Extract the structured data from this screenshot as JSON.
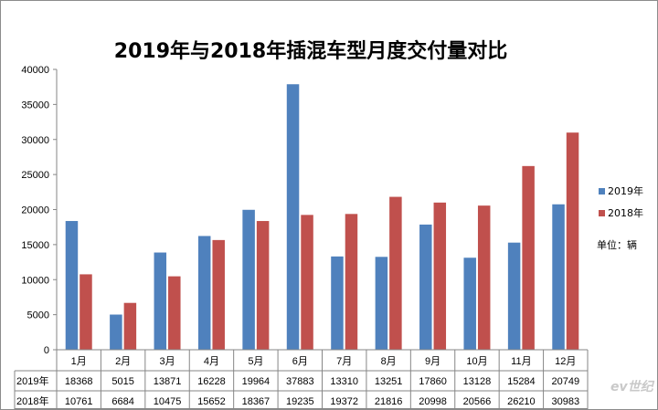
{
  "chart_data": {
    "type": "bar",
    "title": "2019年与2018年插混车型月度交付量对比",
    "categories": [
      "1月",
      "2月",
      "3月",
      "4月",
      "5月",
      "6月",
      "7月",
      "8月",
      "9月",
      "10月",
      "11月",
      "12月"
    ],
    "series": [
      {
        "name": "2019年",
        "color": "#4f81bd",
        "values": [
          18368,
          5015,
          13871,
          16228,
          19964,
          37883,
          13310,
          13251,
          17860,
          13128,
          15284,
          20749
        ]
      },
      {
        "name": "2018年",
        "color": "#c0504d",
        "values": [
          10761,
          6684,
          10475,
          15652,
          18367,
          19235,
          19372,
          21816,
          20998,
          20566,
          26210,
          30983
        ]
      }
    ],
    "ylim": [
      0,
      40000
    ],
    "yticks": [
      0,
      5000,
      10000,
      15000,
      20000,
      25000,
      30000,
      35000,
      40000
    ],
    "grid": false,
    "legend": "right",
    "data_table": true,
    "unit_note": "单位：辆"
  },
  "watermark": "ev世纪"
}
